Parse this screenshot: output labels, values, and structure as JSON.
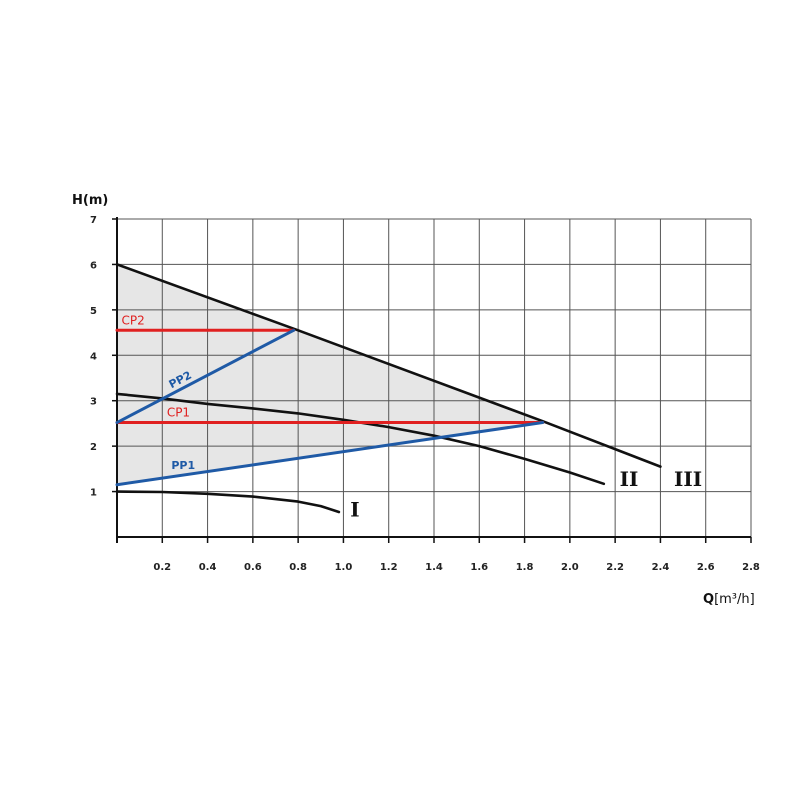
{
  "chart_data": {
    "type": "line",
    "xlabel_main": "Q",
    "xlabel_unit": "[m³/h]",
    "ylabel": "H(m)",
    "xlim": [
      0,
      2.8
    ],
    "ylim": [
      0,
      7
    ],
    "x_ticks": [
      "0.2",
      "0.4",
      "0.6",
      "0.8",
      "1.0",
      "1.2",
      "1.4",
      "1.6",
      "1.8",
      "2.0",
      "2.2",
      "2.4",
      "2.6",
      "2.8"
    ],
    "x_tick_values": [
      0.2,
      0.4,
      0.6,
      0.8,
      1.0,
      1.2,
      1.4,
      1.6,
      1.8,
      2.0,
      2.2,
      2.4,
      2.6,
      2.8
    ],
    "y_ticks": [
      "1",
      "2",
      "3",
      "4",
      "5",
      "6",
      "7"
    ],
    "y_tick_values": [
      1,
      2,
      3,
      4,
      5,
      6,
      7
    ],
    "grid": true,
    "shaded_region": {
      "polygon": [
        [
          0,
          6.0
        ],
        [
          1.88,
          2.55
        ],
        [
          0,
          1.15
        ]
      ],
      "color": "#e6e6e6"
    },
    "series": [
      {
        "name": "I",
        "color": "#111111",
        "points": [
          [
            0,
            1.0
          ],
          [
            0.2,
            0.99
          ],
          [
            0.4,
            0.95
          ],
          [
            0.6,
            0.89
          ],
          [
            0.8,
            0.78
          ],
          [
            0.9,
            0.68
          ],
          [
            0.98,
            0.55
          ]
        ],
        "label_at": [
          1.03,
          0.45
        ]
      },
      {
        "name": "II",
        "color": "#111111",
        "points": [
          [
            0,
            3.15
          ],
          [
            0.2,
            3.05
          ],
          [
            0.4,
            2.93
          ],
          [
            0.6,
            2.83
          ],
          [
            0.8,
            2.72
          ],
          [
            1.0,
            2.58
          ],
          [
            1.2,
            2.42
          ],
          [
            1.4,
            2.23
          ],
          [
            1.6,
            2.0
          ],
          [
            1.8,
            1.72
          ],
          [
            2.0,
            1.42
          ],
          [
            2.15,
            1.17
          ]
        ],
        "label_at": [
          2.22,
          1.12
        ]
      },
      {
        "name": "III",
        "color": "#111111",
        "points": [
          [
            0,
            6.0
          ],
          [
            0.8,
            4.55
          ],
          [
            1.88,
            2.55
          ],
          [
            2.4,
            1.55
          ]
        ],
        "label_at": [
          2.46,
          1.12
        ]
      }
    ],
    "control_lines": [
      {
        "name": "CP2",
        "color": "#e02020",
        "points": [
          [
            0,
            4.55
          ],
          [
            0.78,
            4.55
          ]
        ],
        "label_at": [
          0.02,
          4.68
        ]
      },
      {
        "name": "CP1",
        "color": "#e02020",
        "points": [
          [
            0,
            2.52
          ],
          [
            1.88,
            2.52
          ]
        ],
        "label_at": [
          0.22,
          2.65
        ]
      },
      {
        "name": "PP2",
        "color": "#1f5aa6",
        "points": [
          [
            0,
            2.52
          ],
          [
            0.78,
            4.55
          ]
        ],
        "label_at": [
          0.24,
          3.27
        ],
        "label_rotate": true
      },
      {
        "name": "PP1",
        "color": "#1f5aa6",
        "points": [
          [
            0,
            1.15
          ],
          [
            1.88,
            2.52
          ]
        ],
        "label_at": [
          0.24,
          1.5
        ]
      }
    ]
  }
}
